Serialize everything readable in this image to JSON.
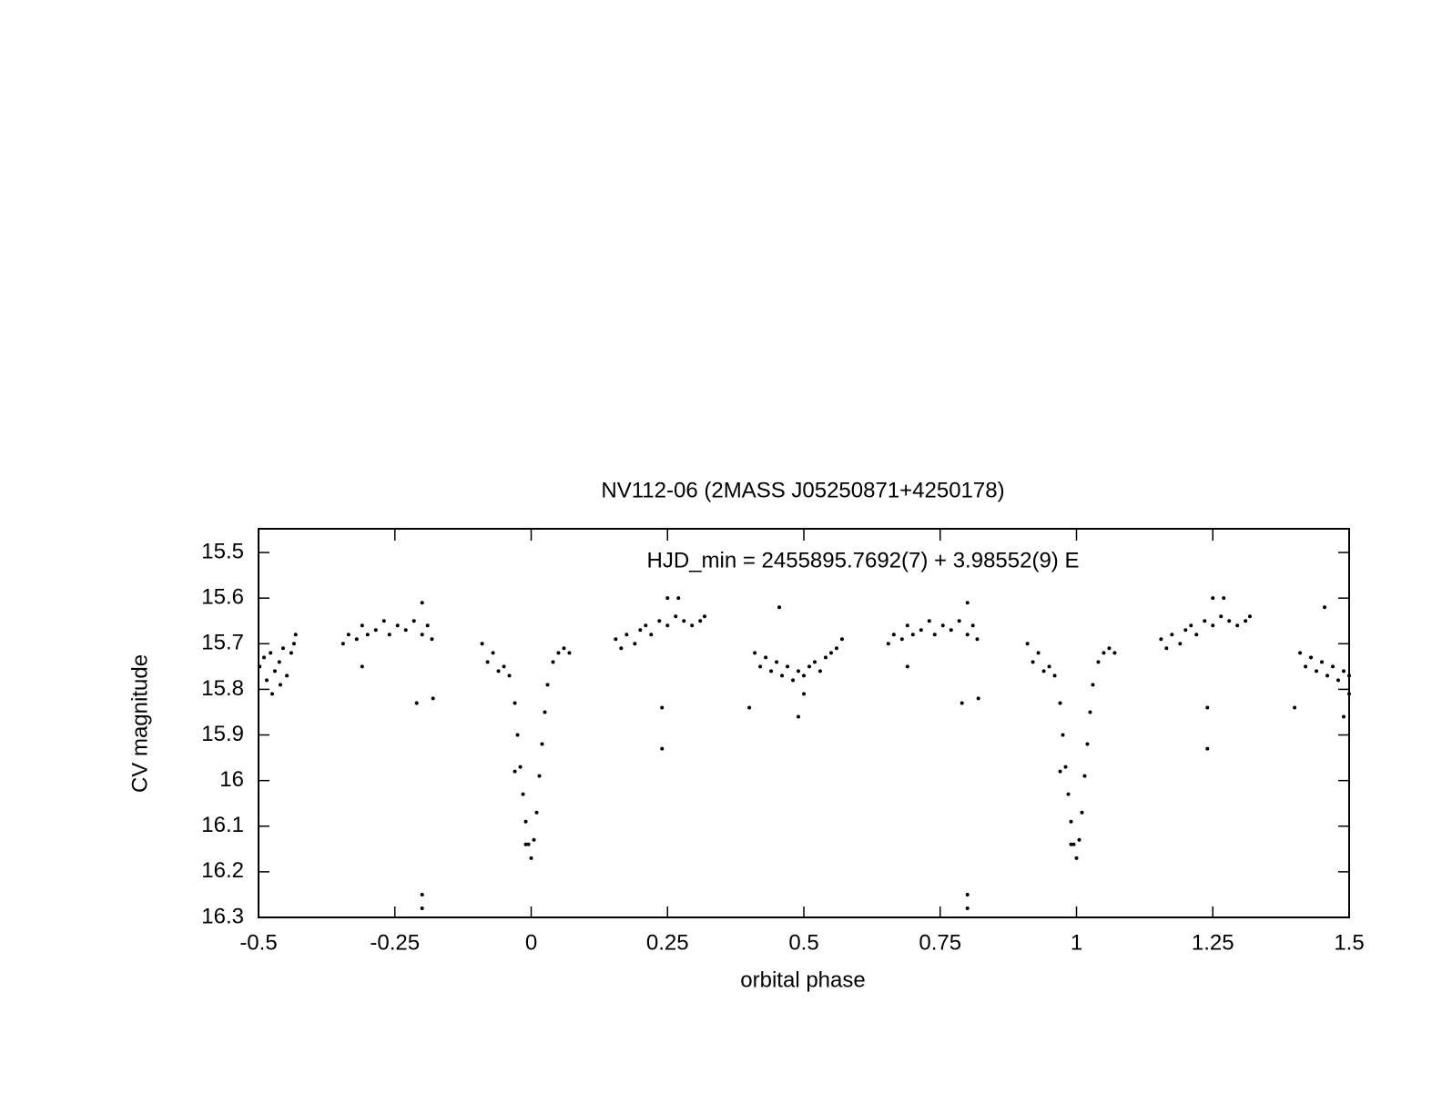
{
  "chart_data": {
    "type": "scatter",
    "title": "NV112-06 (2MASS J05250871+4250178)",
    "annotation": "HJD_min = 2455895.7692(7) + 3.98552(9) E",
    "x_label": "orbital phase",
    "y_label": "CV magnitude",
    "xlim": [
      -0.5,
      1.5
    ],
    "ylim": [
      16.3,
      15.45
    ],
    "xticks": [
      -0.5,
      -0.25,
      0,
      0.25,
      0.5,
      0.75,
      1,
      1.25,
      1.5
    ],
    "yticks": [
      15.5,
      15.6,
      15.7,
      15.8,
      15.9,
      16,
      16.1,
      16.2,
      16.3
    ],
    "series": [
      {
        "color": "#000000",
        "x": [
          -0.498,
          -0.49,
          -0.485,
          -0.478,
          -0.47,
          -0.462,
          -0.455,
          -0.448,
          -0.44,
          -0.435,
          -0.432,
          -0.475,
          -0.46,
          -0.345,
          -0.335,
          -0.32,
          -0.31,
          -0.3,
          -0.285,
          -0.27,
          -0.26,
          -0.245,
          -0.23,
          -0.215,
          -0.2,
          -0.19,
          -0.182,
          -0.31,
          -0.21,
          -0.2,
          -0.2,
          -0.18,
          -0.2,
          -0.09,
          -0.08,
          -0.07,
          -0.06,
          -0.05,
          -0.04,
          -0.03,
          -0.025,
          -0.02,
          -0.015,
          -0.01,
          -0.005,
          0,
          0.005,
          0.01,
          0.015,
          0.02,
          0.025,
          0.03,
          0.04,
          0.05,
          0.06,
          0.07,
          -0.03,
          -0.01,
          0.155,
          0.165,
          0.175,
          0.19,
          0.2,
          0.21,
          0.22,
          0.235,
          0.25,
          0.265,
          0.28,
          0.295,
          0.31,
          0.318,
          0.24,
          0.24,
          0.25,
          0.27,
          0.41,
          0.42,
          0.43,
          0.44,
          0.45,
          0.46,
          0.47,
          0.48,
          0.49,
          0.5,
          0.51,
          0.52,
          0.53,
          0.54,
          0.55,
          0.56,
          0.57,
          0.4,
          0.49,
          0.455,
          0.5,
          0.655,
          0.665,
          0.68,
          0.69,
          0.7,
          0.715,
          0.73,
          0.74,
          0.755,
          0.77,
          0.785,
          0.8,
          0.81,
          0.818,
          0.69,
          0.79,
          0.8,
          0.8,
          0.82,
          0.8,
          0.91,
          0.92,
          0.93,
          0.94,
          0.95,
          0.96,
          0.97,
          0.975,
          0.98,
          0.985,
          0.99,
          0.995,
          1,
          1.005,
          1.01,
          1.015,
          1.02,
          1.025,
          1.03,
          1.04,
          1.05,
          1.06,
          1.07,
          0.97,
          0.99,
          1.155,
          1.165,
          1.175,
          1.19,
          1.2,
          1.21,
          1.22,
          1.235,
          1.25,
          1.265,
          1.28,
          1.295,
          1.31,
          1.318,
          1.24,
          1.24,
          1.25,
          1.27,
          1.41,
          1.42,
          1.43,
          1.44,
          1.45,
          1.46,
          1.47,
          1.48,
          1.49,
          1.5,
          1.4,
          1.49,
          1.455,
          1.5
        ],
        "values": [
          15.75,
          15.73,
          15.78,
          15.72,
          15.76,
          15.74,
          15.71,
          15.77,
          15.72,
          15.7,
          15.68,
          15.81,
          15.79,
          15.7,
          15.68,
          15.69,
          15.66,
          15.68,
          15.67,
          15.65,
          15.68,
          15.66,
          15.67,
          15.65,
          15.68,
          15.66,
          15.69,
          15.75,
          15.83,
          16.25,
          16.28,
          15.82,
          15.61,
          15.7,
          15.74,
          15.72,
          15.76,
          15.75,
          15.77,
          15.83,
          15.9,
          15.97,
          16.03,
          16.09,
          16.14,
          16.17,
          16.13,
          16.07,
          15.99,
          15.92,
          15.85,
          15.79,
          15.74,
          15.72,
          15.71,
          15.72,
          15.98,
          16.14,
          15.69,
          15.71,
          15.68,
          15.7,
          15.67,
          15.66,
          15.68,
          15.65,
          15.66,
          15.64,
          15.65,
          15.66,
          15.65,
          15.64,
          15.84,
          15.93,
          15.6,
          15.6,
          15.72,
          15.75,
          15.73,
          15.76,
          15.74,
          15.77,
          15.75,
          15.78,
          15.76,
          15.77,
          15.75,
          15.74,
          15.76,
          15.73,
          15.72,
          15.71,
          15.69,
          15.84,
          15.86,
          15.62,
          15.81,
          15.7,
          15.68,
          15.69,
          15.66,
          15.68,
          15.67,
          15.65,
          15.68,
          15.66,
          15.67,
          15.65,
          15.68,
          15.66,
          15.69,
          15.75,
          15.83,
          16.25,
          16.28,
          15.82,
          15.61,
          15.7,
          15.74,
          15.72,
          15.76,
          15.75,
          15.77,
          15.83,
          15.9,
          15.97,
          16.03,
          16.09,
          16.14,
          16.17,
          16.13,
          16.07,
          15.99,
          15.92,
          15.85,
          15.79,
          15.74,
          15.72,
          15.71,
          15.72,
          15.98,
          16.14,
          15.69,
          15.71,
          15.68,
          15.7,
          15.67,
          15.66,
          15.68,
          15.65,
          15.66,
          15.64,
          15.65,
          15.66,
          15.65,
          15.64,
          15.84,
          15.93,
          15.6,
          15.6,
          15.72,
          15.75,
          15.73,
          15.76,
          15.74,
          15.77,
          15.75,
          15.78,
          15.76,
          15.77,
          15.84,
          15.86,
          15.62,
          15.81
        ]
      }
    ]
  }
}
